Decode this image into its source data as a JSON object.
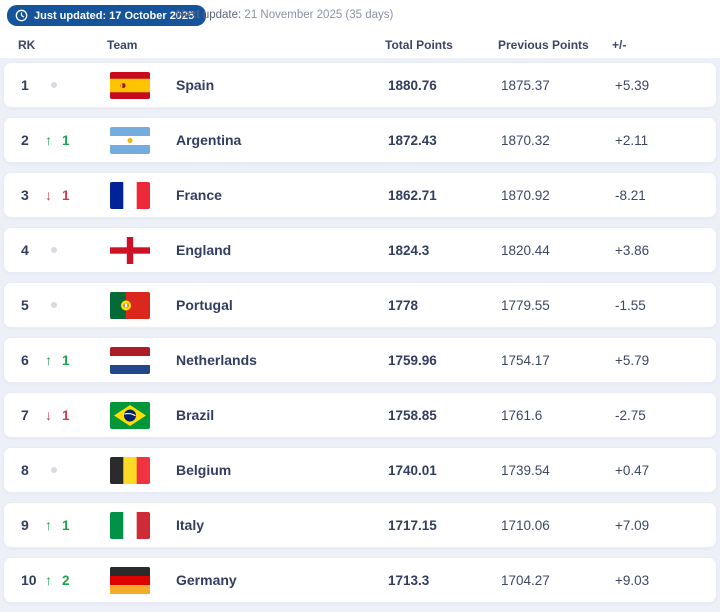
{
  "update_banner": {
    "badge_icon": "clock-icon",
    "badge_label": "Just updated: 17 October 2025",
    "badge_color": "#15539b",
    "next_update_label": "Next update:",
    "next_update_value": "21 November 2025 (35 days)"
  },
  "table": {
    "headers": {
      "rank": "RK",
      "team": "Team",
      "total_points": "Total Points",
      "previous_points": "Previous Points",
      "change": "+/-"
    },
    "rows": [
      {
        "rank": "1",
        "movement": {
          "dir": "none",
          "value": ""
        },
        "flag": "spain",
        "team": "Spain",
        "total_points": "1880.76",
        "previous_points": "1875.37",
        "change": "+5.39"
      },
      {
        "rank": "2",
        "movement": {
          "dir": "up",
          "value": "1"
        },
        "flag": "argentina",
        "team": "Argentina",
        "total_points": "1872.43",
        "previous_points": "1870.32",
        "change": "+2.11"
      },
      {
        "rank": "3",
        "movement": {
          "dir": "down",
          "value": "1"
        },
        "flag": "france",
        "team": "France",
        "total_points": "1862.71",
        "previous_points": "1870.92",
        "change": "-8.21"
      },
      {
        "rank": "4",
        "movement": {
          "dir": "none",
          "value": ""
        },
        "flag": "england",
        "team": "England",
        "total_points": "1824.3",
        "previous_points": "1820.44",
        "change": "+3.86"
      },
      {
        "rank": "5",
        "movement": {
          "dir": "none",
          "value": ""
        },
        "flag": "portugal",
        "team": "Portugal",
        "total_points": "1778",
        "previous_points": "1779.55",
        "change": "-1.55"
      },
      {
        "rank": "6",
        "movement": {
          "dir": "up",
          "value": "1"
        },
        "flag": "netherlands",
        "team": "Netherlands",
        "total_points": "1759.96",
        "previous_points": "1754.17",
        "change": "+5.79"
      },
      {
        "rank": "7",
        "movement": {
          "dir": "down",
          "value": "1"
        },
        "flag": "brazil",
        "team": "Brazil",
        "total_points": "1758.85",
        "previous_points": "1761.6",
        "change": "-2.75"
      },
      {
        "rank": "8",
        "movement": {
          "dir": "none",
          "value": ""
        },
        "flag": "belgium",
        "team": "Belgium",
        "total_points": "1740.01",
        "previous_points": "1739.54",
        "change": "+0.47"
      },
      {
        "rank": "9",
        "movement": {
          "dir": "up",
          "value": "1"
        },
        "flag": "italy",
        "team": "Italy",
        "total_points": "1717.15",
        "previous_points": "1710.06",
        "change": "+7.09"
      },
      {
        "rank": "10",
        "movement": {
          "dir": "up",
          "value": "2"
        },
        "flag": "germany",
        "team": "Germany",
        "total_points": "1713.3",
        "previous_points": "1704.27",
        "change": "+9.03"
      }
    ]
  },
  "colors": {
    "up_green": "#1fa34b",
    "down_red": "#d23b4e",
    "badge_blue": "#15539b",
    "text_navy": "#323d5f",
    "page_background": "#edf0f7"
  }
}
